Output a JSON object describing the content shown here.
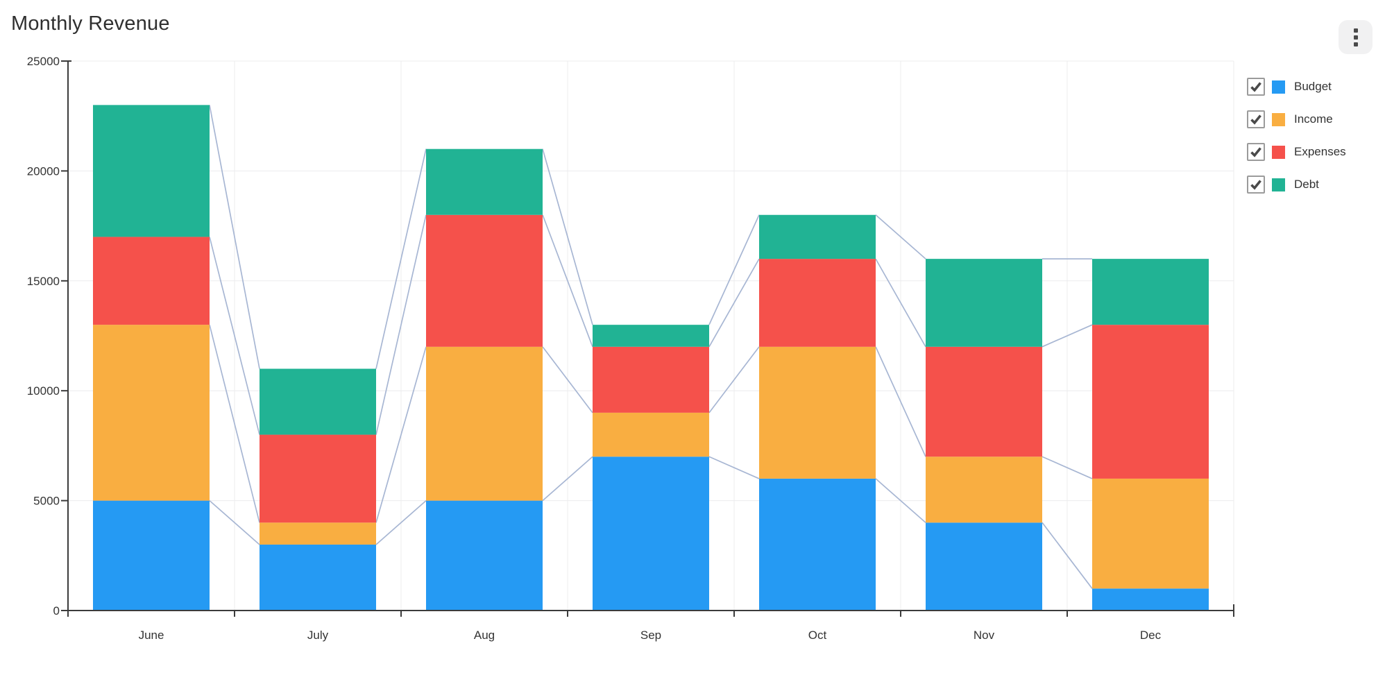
{
  "title": "Monthly Revenue",
  "toolbar": {
    "more_options_icon": "kebab-menu-icon"
  },
  "legend": {
    "position": "right",
    "items": [
      {
        "label": "Budget",
        "checked": true
      },
      {
        "label": "Income",
        "checked": true
      },
      {
        "label": "Expenses",
        "checked": true
      },
      {
        "label": "Debt",
        "checked": true
      }
    ]
  },
  "colors": {
    "budget": "#259af3",
    "income": "#f9ae41",
    "expenses": "#f5514b",
    "debt": "#21b394",
    "connector_line": "#a7b6d3",
    "gridline": "#ececee",
    "axis": "#3b3b3b",
    "text": "#333333",
    "title_text": "#2f2f2f",
    "checkbox_border": "#9b9b9b",
    "checkbox_check": "#4a4a4a",
    "kebab_bg": "#f1f1f2",
    "kebab_dot": "#4a4a4a"
  },
  "chart_data": {
    "type": "bar",
    "stacked": true,
    "title": "Monthly Revenue",
    "xlabel": "",
    "ylabel": "",
    "categories": [
      "June",
      "July",
      "Aug",
      "Sep",
      "Oct",
      "Nov",
      "Dec"
    ],
    "series": [
      {
        "name": "Budget",
        "color": "#259af3",
        "checked": true,
        "values": [
          5000,
          3000,
          5000,
          7000,
          6000,
          4000,
          1000
        ]
      },
      {
        "name": "Income",
        "color": "#f9ae41",
        "checked": true,
        "values": [
          8000,
          1000,
          7000,
          2000,
          6000,
          3000,
          5000
        ]
      },
      {
        "name": "Expenses",
        "color": "#f5514b",
        "checked": true,
        "values": [
          4000,
          4000,
          6000,
          3000,
          4000,
          5000,
          7000
        ]
      },
      {
        "name": "Debt",
        "color": "#21b394",
        "checked": true,
        "values": [
          6000,
          3000,
          3000,
          1000,
          2000,
          4000,
          3000
        ]
      }
    ],
    "stack_totals": [
      23000,
      11000,
      21000,
      13000,
      18000,
      16000,
      16000
    ],
    "ylim": [
      0,
      25000
    ],
    "ytick_step": 5000,
    "ytick_labels": [
      "0",
      "5000",
      "10000",
      "15000",
      "20000",
      "25000"
    ],
    "grid": true,
    "vertical_grid": true,
    "legend_position": "right",
    "segment_connector_lines": true
  }
}
